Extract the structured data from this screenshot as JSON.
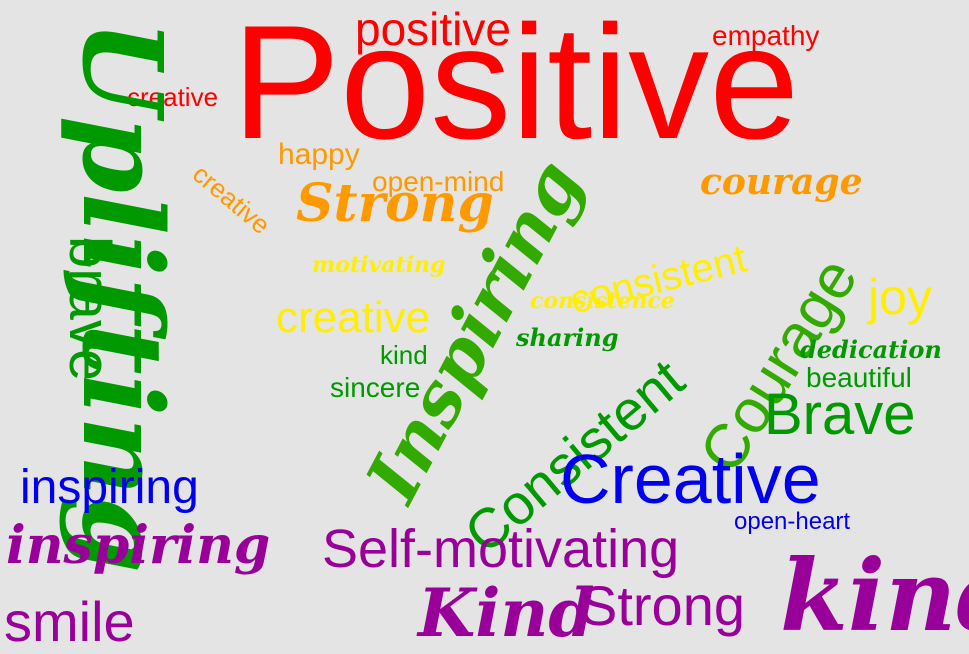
{
  "words": {
    "positive_big": "Positive",
    "positive_small": "positive",
    "empathy": "empathy",
    "creative_red": "creative",
    "happy": "happy",
    "creative_orange_rot": "creative",
    "open_mind": "open-mind",
    "strong_script": "Strong",
    "courage_script": "courage",
    "uplifting": "Uplifting",
    "inspiring_script_green": "Inspiring",
    "consistent_small": "consistent",
    "motivating": "motivating",
    "consistence": "consistence",
    "joy": "joy",
    "creative_yellow": "creative",
    "courage_big": "Courage",
    "consistent_big": "Consistent",
    "brave_vertical": "brave",
    "sharing": "sharing",
    "kind_small": "kind",
    "dedication": "dedication",
    "sincere": "sincere",
    "beautiful": "beautiful",
    "brave_big": "Brave",
    "inspiring_blue": "inspiring",
    "creative_blue": "Creative",
    "open_heart": "open-heart",
    "inspiring_script_purple": "inspiring",
    "self_motivating": "Self-motivating",
    "smile": "smile",
    "kind_script": "Kind",
    "strong_purple": "Strong",
    "kind_big_script": "kind"
  },
  "colors": {
    "background": "#e4e4e4",
    "red": "#ff0000",
    "orange": "#ff9900",
    "yellow": "#ffee00",
    "green": "#009900",
    "blue": "#0000ee",
    "purple": "#990099"
  }
}
